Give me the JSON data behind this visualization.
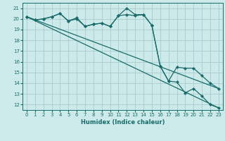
{
  "xlabel": "Humidex (Indice chaleur)",
  "background_color": "#cceaea",
  "grid_color": "#aacccc",
  "line_color": "#1a6b6b",
  "xlim": [
    -0.5,
    23.5
  ],
  "ylim": [
    11.5,
    21.5
  ],
  "yticks": [
    12,
    13,
    14,
    15,
    16,
    17,
    18,
    19,
    20,
    21
  ],
  "xticks": [
    0,
    1,
    2,
    3,
    4,
    5,
    6,
    7,
    8,
    9,
    10,
    11,
    12,
    13,
    14,
    15,
    16,
    17,
    18,
    19,
    20,
    21,
    22,
    23
  ],
  "series0_x": [
    0,
    1,
    2,
    3,
    4,
    5,
    6,
    7,
    8,
    9,
    10,
    11,
    12,
    13,
    14,
    15,
    16,
    17,
    18,
    19,
    20,
    21,
    22,
    23
  ],
  "series0_y": [
    20.2,
    19.9,
    20.0,
    20.2,
    20.5,
    19.8,
    20.1,
    19.3,
    19.5,
    19.6,
    19.3,
    20.3,
    21.0,
    20.4,
    20.4,
    19.4,
    15.6,
    14.2,
    14.1,
    13.1,
    13.5,
    12.8,
    12.0,
    11.7
  ],
  "series1_x": [
    0,
    1,
    2,
    3,
    4,
    5,
    6,
    7,
    8,
    9,
    10,
    11,
    12,
    13,
    14,
    15,
    16,
    17,
    18,
    19,
    20,
    21,
    22,
    23
  ],
  "series1_y": [
    20.2,
    19.9,
    20.0,
    20.2,
    20.5,
    19.8,
    20.0,
    19.3,
    19.5,
    19.6,
    19.3,
    20.3,
    20.4,
    20.3,
    20.4,
    19.4,
    15.6,
    14.2,
    15.5,
    15.4,
    15.4,
    14.7,
    14.0,
    13.5
  ],
  "trend0_x": [
    0,
    23
  ],
  "trend0_y": [
    20.2,
    11.7
  ],
  "trend1_x": [
    0,
    23
  ],
  "trend1_y": [
    20.2,
    13.5
  ]
}
